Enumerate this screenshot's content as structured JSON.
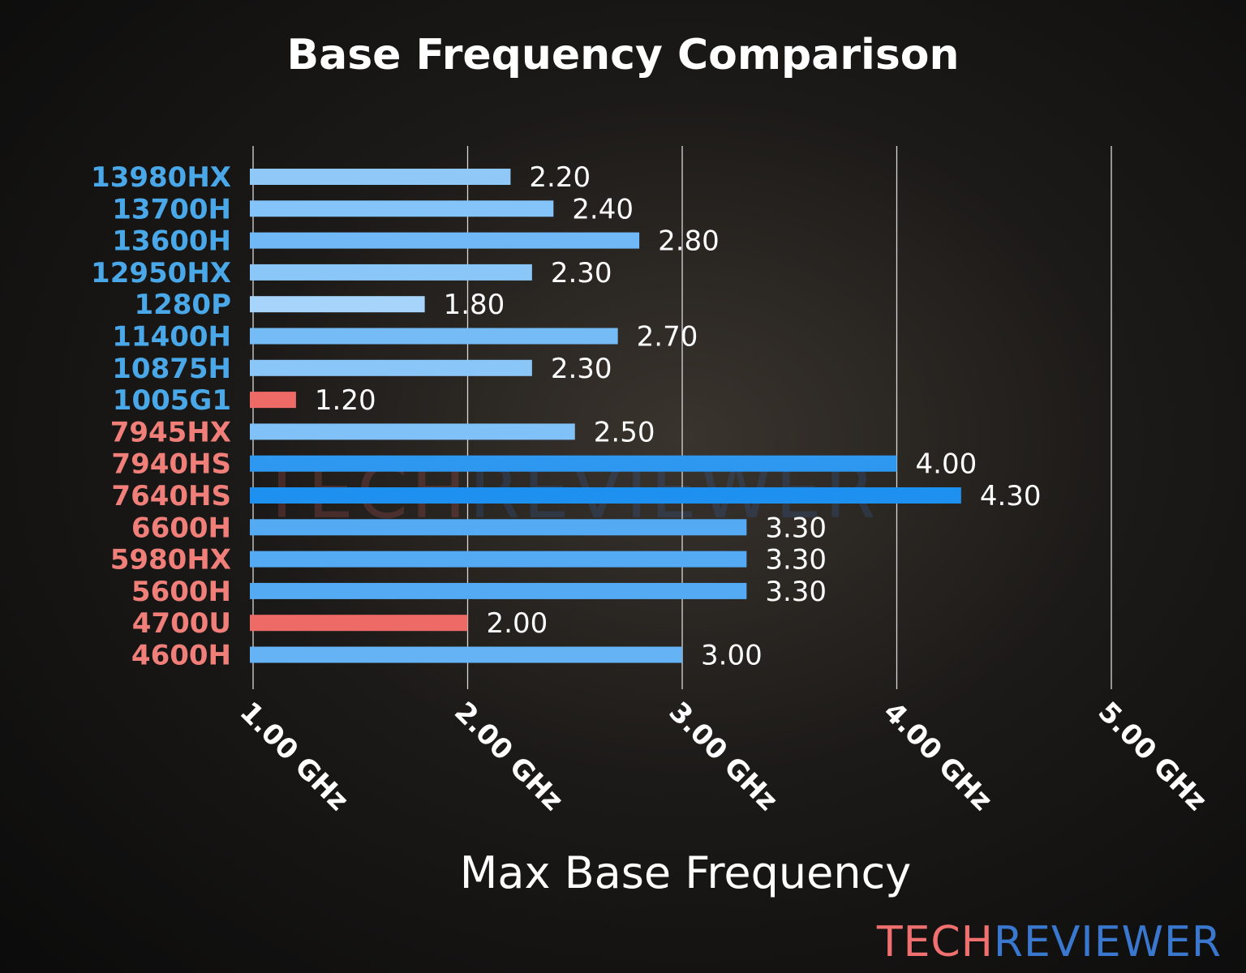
{
  "chart_data": {
    "type": "bar",
    "orientation": "horizontal",
    "title": "Base Frequency Comparison",
    "xlabel": "Max Base Frequency",
    "ylabel": "",
    "xlim": [
      1.0,
      5.0
    ],
    "xticks": [
      1.0,
      2.0,
      3.0,
      4.0,
      5.0
    ],
    "xtick_labels": [
      "1.00 GHz",
      "2.00 GHz",
      "3.00 GHz",
      "4.00 GHz",
      "5.00 GHz"
    ],
    "grid": "vertical",
    "categories": [
      "13980HX",
      "13700H",
      "13600H",
      "12950HX",
      "1280P",
      "11400H",
      "10875H",
      "1005G1",
      "7945HX",
      "7940HS",
      "7640HS",
      "6600H",
      "5980HX",
      "5600H",
      "4700U",
      "4600H"
    ],
    "values": [
      2.2,
      2.4,
      2.8,
      2.3,
      1.8,
      2.7,
      2.3,
      1.2,
      2.5,
      4.0,
      4.3,
      3.3,
      3.3,
      3.3,
      2.0,
      3.0
    ],
    "value_labels": [
      "2.20",
      "2.40",
      "2.80",
      "2.30",
      "1.80",
      "2.70",
      "2.30",
      "1.20",
      "2.50",
      "4.00",
      "4.30",
      "3.30",
      "3.30",
      "3.30",
      "2.00",
      "3.00"
    ],
    "category_groups": [
      "intel",
      "intel",
      "intel",
      "intel",
      "intel",
      "intel",
      "intel",
      "intel",
      "amd",
      "amd",
      "amd",
      "amd",
      "amd",
      "amd",
      "amd",
      "amd"
    ],
    "highlighted_low": [
      "1005G1",
      "4700U"
    ]
  },
  "colors": {
    "intel_label": "#4aa8e8",
    "amd_label": "#f07f7a",
    "bar_light": "#a6d4fa",
    "bar_dark": "#1e90f0",
    "bar_low": "#ee6a67"
  },
  "watermark": {
    "part1": "TECH",
    "part2": "REVIEWER",
    "color1": "#f07070",
    "color2": "#3a78d0"
  }
}
